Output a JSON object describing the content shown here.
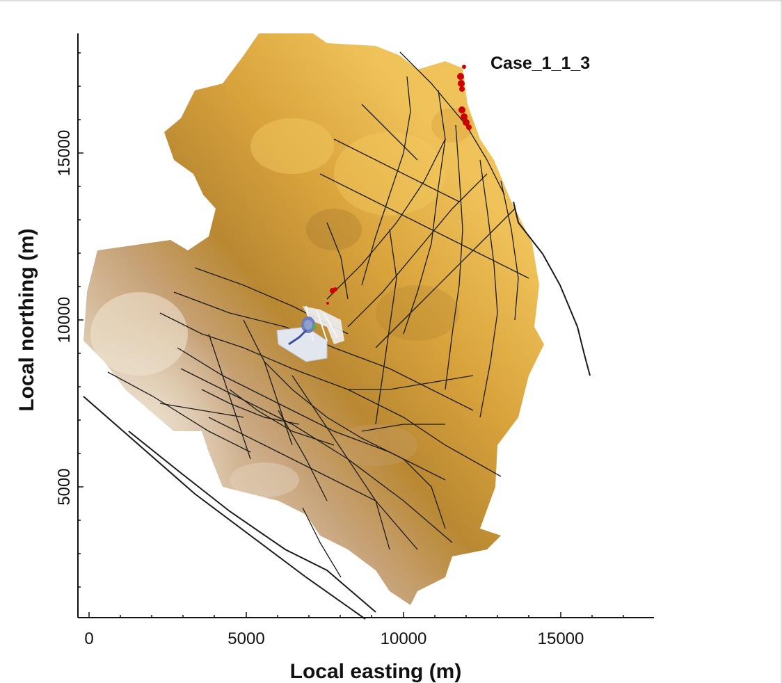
{
  "map": {
    "case_label": "Case_1_1_3",
    "x_axis_title": "Local easting (m)",
    "y_axis_title": "Local northing (m)",
    "x_ticks": [
      "0",
      "5000",
      "10000",
      "15000"
    ],
    "y_ticks": [
      "5000",
      "10000",
      "15000"
    ],
    "colors": {
      "terrain_high": "#e6b445",
      "terrain_mid": "#c98f2b",
      "terrain_low": "#d8c4a8",
      "faults": "#1a1a1a",
      "wells": "#cc0000",
      "injection_zone": "#d8dde6",
      "plume": "#6d7fb8"
    },
    "icons": {
      "faults": "fault-lines",
      "wells": "red-well-markers",
      "plume": "blue-plume-patch"
    }
  }
}
